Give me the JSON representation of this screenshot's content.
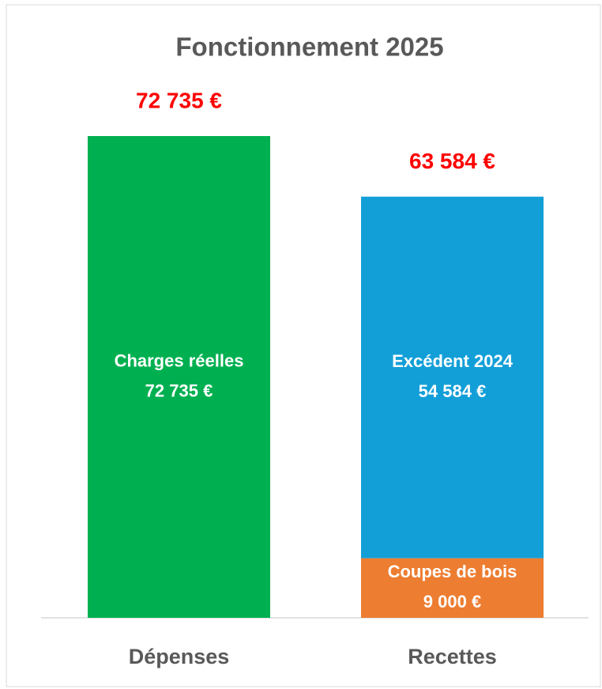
{
  "chart_data": {
    "type": "stacked_bar",
    "title": "Fonctionnement 2025",
    "categories": [
      "Dépenses",
      "Recettes"
    ],
    "series": [
      {
        "name": "Charges réelles",
        "color": "#00b050",
        "values": [
          72735,
          null
        ],
        "value_labels": [
          "72 735 €",
          null
        ]
      },
      {
        "name": "Coupes de bois",
        "color": "#ed7d31",
        "values": [
          null,
          9000
        ],
        "value_labels": [
          null,
          "9 000 €"
        ]
      },
      {
        "name": "Excédent 2024",
        "color": "#129fd8",
        "values": [
          null,
          54584
        ],
        "value_labels": [
          null,
          "54 584 €"
        ]
      }
    ],
    "totals": [
      72735,
      63584
    ],
    "total_labels": [
      "72 735 €",
      "63 584 €"
    ],
    "total_color": "#ff0000"
  }
}
